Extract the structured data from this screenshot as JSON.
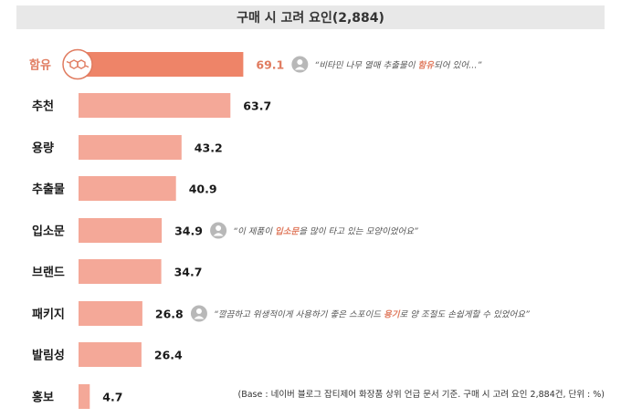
{
  "title": "구매 시 고려 요인(2,884)",
  "footnote": "(Base : 네이버 블로그 잡티제어 화장품 상위 언급 문서 기준. 구매 시 고려 요인 2,884건, 단위 : %)",
  "colors": {
    "bar": "#f4a898",
    "highlight_bar": "#ee8468",
    "highlight_text": "#e07b5f",
    "label_text": "#1a1a1a",
    "title_bg": "#e8e8e8",
    "user_icon": "#b8b8b8"
  },
  "icons": {
    "highlight": "molecule-icon",
    "quote": "user-icon"
  },
  "chart_data": {
    "type": "bar",
    "orientation": "horizontal",
    "title": "구매 시 고려 요인(2,884)",
    "categories": [
      "함유",
      "추천",
      "용량",
      "추출물",
      "입소문",
      "브랜드",
      "패키지",
      "발림성",
      "홍보"
    ],
    "values": [
      69.1,
      63.7,
      43.2,
      40.9,
      34.9,
      34.7,
      26.8,
      26.4,
      4.7
    ],
    "value_labels": [
      "69.1",
      "63.7",
      "43.2",
      "40.9",
      "34.9",
      "34.7",
      "26.8",
      "26.4",
      "4.7"
    ],
    "highlight_index": 0,
    "annotations": [
      {
        "category": "함유",
        "before": "“비타민 나무 열매 추출물이 ",
        "keyword": "함유",
        "after": "되어 있어…”"
      },
      {
        "category": "입소문",
        "before": "“이 제품이 ",
        "keyword": "입소문",
        "after": "을 많이 타고 있는 모양이었어요”"
      },
      {
        "category": "패키지",
        "before": "“깔끔하고 위생적이게 사용하기 좋은 스포이드 ",
        "keyword": "용기",
        "after": "로 양 조절도 손쉽게할 수 있었어요”"
      }
    ],
    "grid": false,
    "legend": "none"
  }
}
